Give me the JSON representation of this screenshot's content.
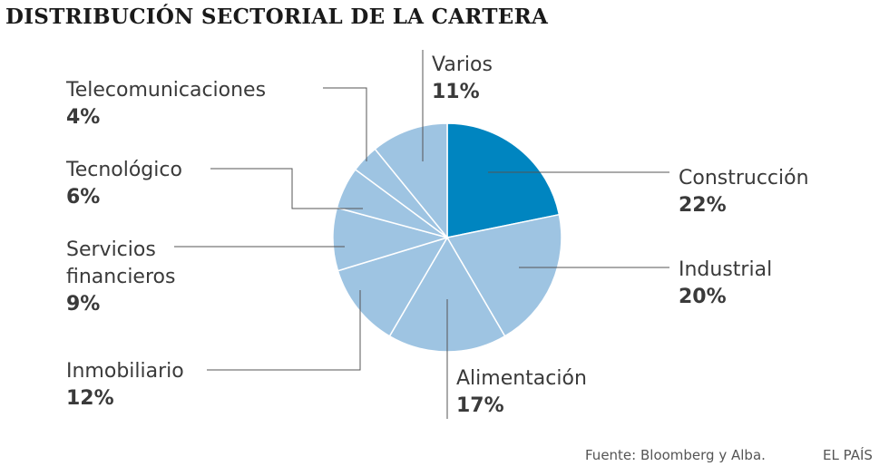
{
  "header": {
    "title": "DISTRIBUCIÓN SECTORIAL DE LA CARTERA"
  },
  "chart_data": {
    "type": "pie",
    "title": "DISTRIBUCIÓN SECTORIAL DE LA CARTERA",
    "start": "12 o'clock, clockwise",
    "slices": [
      {
        "name": "Construcción",
        "label": "Construcción",
        "value": 22,
        "pct_label": "22%",
        "color": "#0085c0"
      },
      {
        "name": "Industrial",
        "label": "Industrial",
        "value": 20,
        "pct_label": "20%",
        "color": "#9ec4e2"
      },
      {
        "name": "Alimentación",
        "label": "Alimentación",
        "value": 17,
        "pct_label": "17%",
        "color": "#9ec4e2"
      },
      {
        "name": "Inmobiliario",
        "label": "Inmobiliario",
        "value": 12,
        "pct_label": "12%",
        "color": "#9ec4e2"
      },
      {
        "name": "Servicios financieros",
        "label": "Servicios\nfinancieros",
        "value": 9,
        "pct_label": "9%",
        "color": "#9ec4e2"
      },
      {
        "name": "Tecnológico",
        "label": "Tecnológico",
        "value": 6,
        "pct_label": "6%",
        "color": "#9ec4e2"
      },
      {
        "name": "Telecomunicaciones",
        "label": "Telecomunicaciones",
        "value": 4,
        "pct_label": "4%",
        "color": "#9ec4e2"
      },
      {
        "name": "Varios",
        "label": "Varios",
        "value": 11,
        "pct_label": "11%",
        "color": "#9ec4e2"
      }
    ]
  },
  "footer": {
    "source": "Fuente: Bloomberg y Alba.",
    "brand": "EL PAÍS"
  }
}
